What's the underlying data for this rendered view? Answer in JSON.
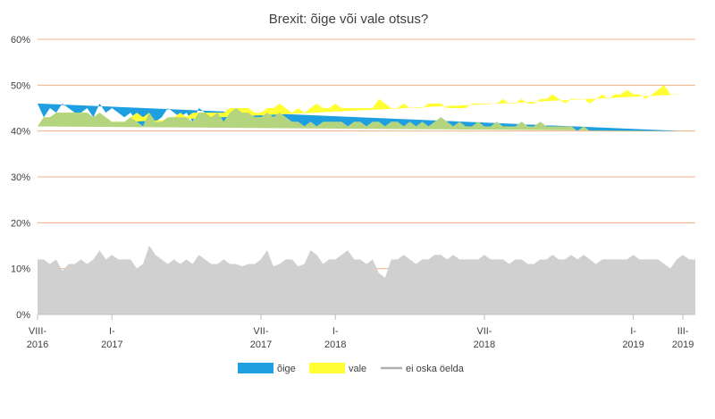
{
  "chart_data": {
    "type": "area",
    "title": "Brexit: õige või vale otsus?",
    "xlabel": "",
    "ylabel": "",
    "ylim": [
      0,
      60
    ],
    "y_ticks": [
      "0%",
      "10%",
      "20%",
      "30%",
      "40%",
      "50%",
      "60%"
    ],
    "y_tick_values": [
      0,
      10,
      20,
      30,
      40,
      50,
      60
    ],
    "x_ticks": [
      {
        "index": 0,
        "line1": "VIII-",
        "line2": "2016"
      },
      {
        "index": 12,
        "line1": "I-",
        "line2": "2017"
      },
      {
        "index": 36,
        "line1": "VII-",
        "line2": "2017"
      },
      {
        "index": 48,
        "line1": "I-",
        "line2": "2018"
      },
      {
        "index": 72,
        "line1": "VII-",
        "line2": "2018"
      },
      {
        "index": 96,
        "line1": "I-",
        "line2": "2019"
      },
      {
        "index": 104,
        "line1": "III-",
        "line2": "2019"
      }
    ],
    "series": [
      {
        "name": "ei oska öelda",
        "color": "#d0d0d0",
        "values": [
          12,
          12,
          11,
          12,
          9.5,
          11,
          11,
          12,
          11,
          12,
          14,
          12,
          13,
          12,
          12,
          12,
          10,
          11,
          15,
          13,
          12,
          11,
          12,
          11,
          12,
          11,
          13,
          12,
          11,
          11,
          12,
          11,
          11,
          10.5,
          11,
          11,
          12,
          14,
          10.5,
          11,
          12,
          12,
          10.5,
          11,
          14,
          13,
          11,
          12,
          12,
          13,
          14,
          12,
          12,
          11,
          12,
          9,
          8,
          12,
          12,
          13,
          12,
          11,
          12,
          12,
          13,
          13,
          12,
          13,
          12,
          12,
          12,
          12,
          13,
          12,
          12,
          12,
          11,
          12,
          12,
          11,
          11,
          12,
          12,
          13,
          12,
          12,
          13,
          12,
          13,
          12,
          11,
          12,
          12,
          12,
          12,
          12,
          13,
          12,
          12,
          12,
          12,
          11,
          10,
          12,
          13,
          12,
          12
        ]
      },
      {
        "name": "õige",
        "color": "#1e9fe0",
        "values": [
          46,
          43,
          45,
          44,
          46,
          45,
          44,
          44,
          45,
          43,
          46,
          44,
          45,
          44,
          43,
          44,
          42,
          41,
          44,
          42,
          43,
          45,
          44,
          43,
          44,
          42,
          45,
          44,
          43,
          44,
          42,
          44,
          45,
          44,
          44,
          43,
          43,
          44,
          43,
          44,
          43,
          42,
          42,
          41,
          42,
          41,
          42,
          42,
          42,
          42,
          41,
          42,
          42,
          41,
          42,
          42,
          41,
          42,
          42,
          41,
          42,
          41,
          42,
          41,
          42,
          43,
          42,
          41,
          42,
          41,
          41,
          42,
          41,
          41,
          42,
          41,
          41,
          41,
          42,
          41,
          41,
          42,
          41,
          41,
          41,
          41,
          41,
          40,
          41,
          40,
          40,
          40,
          40,
          40,
          40,
          40,
          40,
          40,
          40,
          40,
          40,
          40,
          40,
          40,
          40
        ]
      },
      {
        "name": "vale",
        "color": "#ffff33",
        "values": [
          41,
          43,
          43,
          44,
          44,
          44,
          44,
          44,
          44,
          43,
          44,
          43,
          42,
          42,
          42,
          43,
          44,
          43,
          44,
          42,
          42,
          43,
          43,
          44,
          43,
          44,
          44,
          44,
          44,
          44,
          44,
          45,
          45,
          45,
          45,
          44,
          44,
          45,
          45,
          46,
          45,
          44,
          45,
          44,
          45,
          46,
          45,
          45,
          46,
          45,
          45,
          45,
          45,
          45,
          45,
          47,
          46,
          45,
          45,
          46,
          45,
          45,
          45,
          46,
          46,
          46,
          45,
          45,
          45,
          45,
          46,
          46,
          46,
          46,
          46,
          47,
          46,
          46,
          47,
          46,
          46,
          47,
          47,
          48,
          47,
          46,
          47,
          47,
          47,
          46,
          47,
          48,
          47,
          48,
          48,
          49,
          48,
          48,
          47,
          48,
          49,
          50,
          48,
          48,
          48
        ]
      }
    ],
    "legend": [
      {
        "label": "õige",
        "color": "#1e9fe0",
        "style": "area"
      },
      {
        "label": "vale",
        "color": "#ffff33",
        "style": "area"
      },
      {
        "label": "ei oska öelda",
        "color": "#b0b0b0",
        "style": "line"
      }
    ],
    "legend_position": "bottom",
    "grid": true,
    "grid_color": "#f4b183",
    "overlap_color": "#b4d47e"
  }
}
